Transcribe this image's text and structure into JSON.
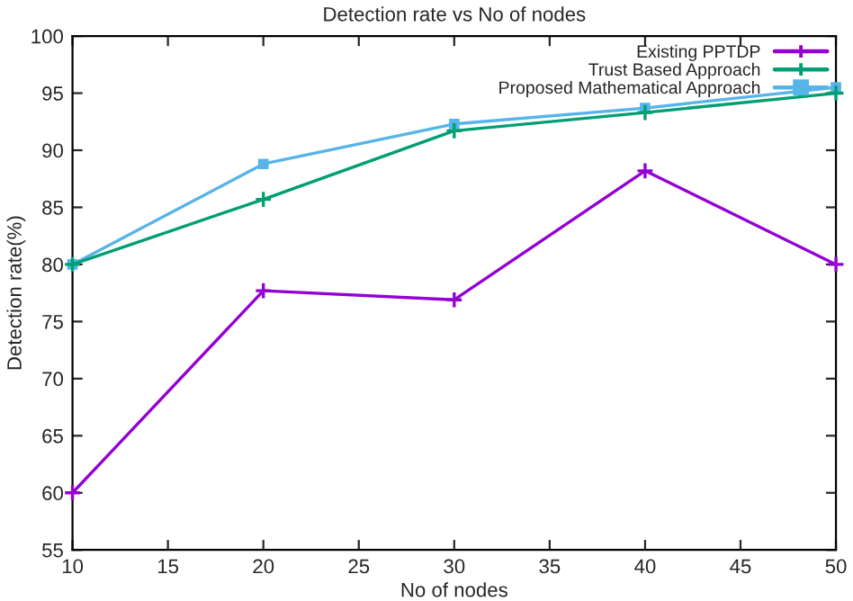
{
  "chart_data": {
    "type": "line",
    "title": "Detection rate vs No of nodes",
    "xlabel": "No of nodes",
    "ylabel": "Detection rate(%)",
    "x": [
      10,
      20,
      30,
      40,
      50
    ],
    "series": [
      {
        "name": "Existing PPTDP",
        "color": "#9400d3",
        "marker": "cross",
        "values": [
          60,
          77.7,
          76.9,
          88.2,
          80
        ]
      },
      {
        "name": "Trust Based Approach",
        "color": "#009e73",
        "marker": "cross",
        "values": [
          80,
          85.7,
          91.7,
          93.3,
          95
        ]
      },
      {
        "name": "Proposed Mathematical Approach",
        "color": "#56b4e9",
        "marker": "square",
        "values": [
          80,
          88.8,
          92.3,
          93.7,
          95.5
        ]
      }
    ],
    "xlim": [
      10,
      50
    ],
    "xticks": [
      10,
      15,
      20,
      25,
      30,
      35,
      40,
      45,
      50
    ],
    "ylim": [
      55,
      100
    ],
    "yticks": [
      55,
      60,
      65,
      70,
      75,
      80,
      85,
      90,
      95,
      100
    ],
    "grid": false,
    "legend": "top right",
    "line_style": "solid"
  }
}
